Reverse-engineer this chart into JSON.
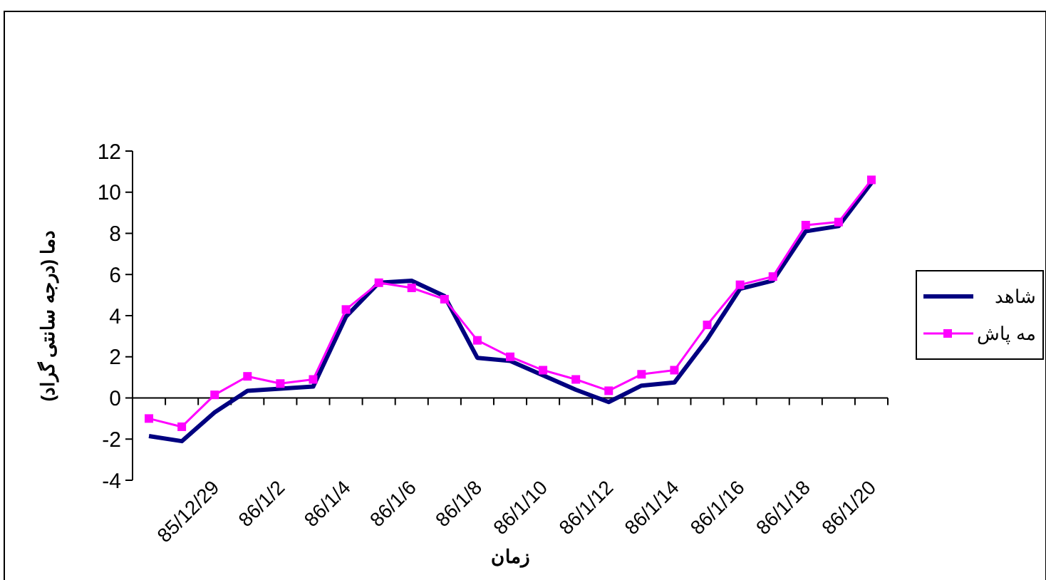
{
  "chart_data": {
    "type": "line",
    "xlabel": "زمان",
    "ylabel": "دما (درجه سانتی گراد)",
    "categories": [
      null,
      null,
      "85/12/29",
      null,
      "86/1/2",
      null,
      "86/1/4",
      null,
      "86/1/6",
      null,
      "86/1/8",
      null,
      "86/1/10",
      null,
      "86/1/12",
      null,
      "86/1/14",
      null,
      "86/1/16",
      null,
      "86/1/18",
      null,
      "86/1/20"
    ],
    "series": [
      {
        "name": "شاهد",
        "color": "#000080",
        "marker": "none",
        "values": [
          -1.85,
          -2.1,
          -0.7,
          0.35,
          0.45,
          0.55,
          3.95,
          5.6,
          5.7,
          4.95,
          1.95,
          1.8,
          1.1,
          0.4,
          -0.2,
          0.6,
          0.75,
          2.85,
          5.3,
          5.7,
          8.1,
          8.35,
          10.45
        ]
      },
      {
        "name": "مه پاش",
        "color": "#ff00ff",
        "marker": "square",
        "values": [
          -1.0,
          -1.4,
          0.15,
          1.05,
          0.7,
          0.9,
          4.3,
          5.6,
          5.35,
          4.8,
          2.8,
          2.0,
          1.35,
          0.9,
          0.35,
          1.15,
          1.35,
          3.55,
          5.5,
          5.9,
          8.4,
          8.55,
          10.6
        ]
      }
    ],
    "ylim": [
      -4,
      12
    ],
    "yticks": [
      -4,
      -2,
      0,
      2,
      4,
      6,
      8,
      10,
      12
    ],
    "legend": "right"
  }
}
